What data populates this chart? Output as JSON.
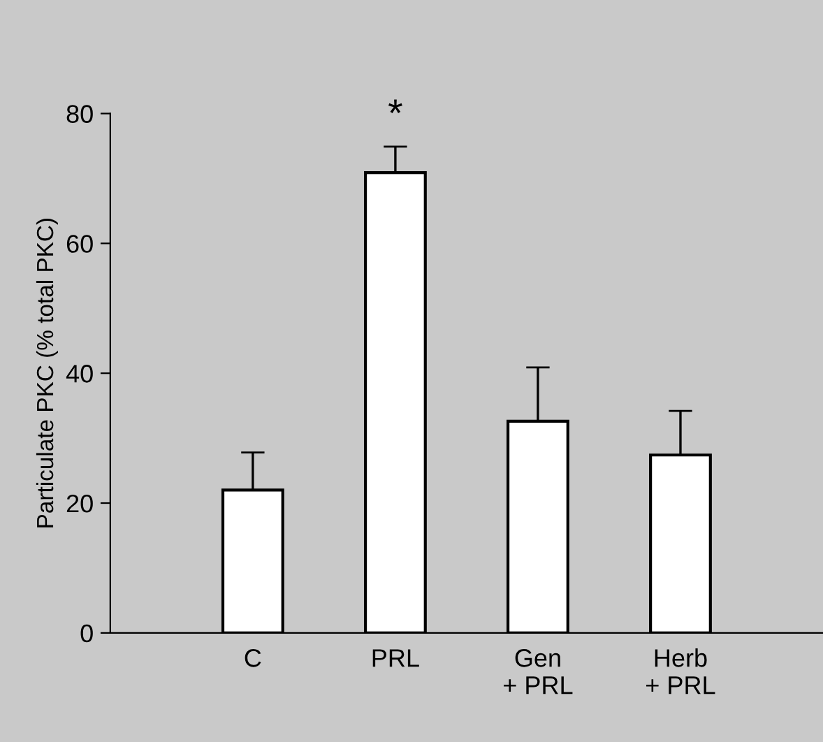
{
  "chart_data": {
    "type": "bar",
    "ylabel": "Particulate PKC (% total PKC)",
    "categories": [
      "C",
      "PRL",
      "Gen\n+ PRL",
      "Herb\n+ PRL"
    ],
    "values": [
      22.0,
      70.9,
      32.6,
      27.4
    ],
    "errors": [
      5.8,
      4.0,
      8.3,
      6.8
    ],
    "color": "#ffffff",
    "ylim": [
      0,
      80
    ],
    "yticks": [
      0,
      20,
      40,
      60,
      80
    ],
    "grid": false,
    "legend": false,
    "annotations": [
      "*"
    ]
  }
}
